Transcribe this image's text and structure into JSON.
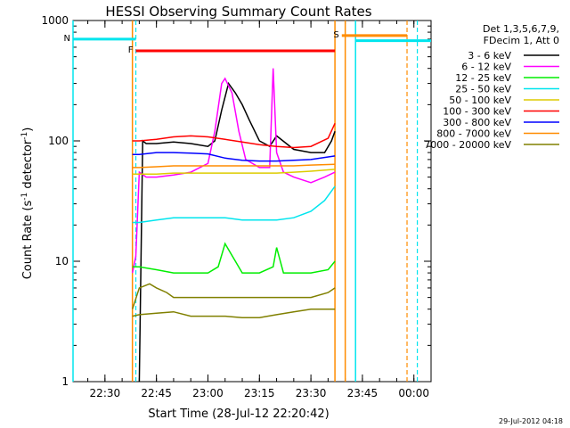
{
  "chart_data": {
    "type": "line",
    "title": "HESSI Observing Summary Count Rates",
    "xlabel": "Start Time (28-Jul-12 22:20:42)",
    "ylabel_prefix": "Count Rate (s",
    "ylabel_sup1": "-1",
    "ylabel_mid": " detector",
    "ylabel_sup2": "-1",
    "ylabel_suffix": ")",
    "ylabel": "Count Rate (s-1 detector-1)",
    "y_scale": "log",
    "ylim": [
      1,
      1000
    ],
    "xlim": [
      "22:20:42",
      "00:05:00"
    ],
    "x_ticks": [
      "22:30",
      "22:45",
      "23:00",
      "23:15",
      "23:30",
      "23:45",
      "00:00"
    ],
    "y_ticks": [
      "1",
      "10",
      "100",
      "1000"
    ],
    "grid": false,
    "legend_position": "top-right",
    "legend_header": [
      "Det 1,3,5,6,7,9,",
      "FDecim 1, Att 0"
    ],
    "series": [
      {
        "name": "3 - 6 keV",
        "color": "#000000",
        "x": [
          "22:40",
          "22:41",
          "22:42",
          "22:45",
          "22:50",
          "22:55",
          "23:00",
          "23:02",
          "23:04",
          "23:06",
          "23:08",
          "23:10",
          "23:12",
          "23:15",
          "23:18",
          "23:20",
          "23:25",
          "23:30",
          "23:34",
          "23:36",
          "23:37"
        ],
        "y": [
          1,
          100,
          95,
          95,
          98,
          95,
          90,
          100,
          180,
          300,
          250,
          200,
          150,
          100,
          90,
          110,
          85,
          80,
          80,
          100,
          120
        ]
      },
      {
        "name": "6 - 12 keV",
        "color": "#ff00ff",
        "x": [
          "22:38",
          "22:39",
          "22:40",
          "22:42",
          "22:45",
          "22:50",
          "22:55",
          "23:00",
          "23:02",
          "23:04",
          "23:05",
          "23:07",
          "23:09",
          "23:11",
          "23:15",
          "23:18",
          "23:19",
          "23:20",
          "23:22",
          "23:25",
          "23:30",
          "23:34",
          "23:37"
        ],
        "y": [
          8,
          11,
          55,
          50,
          50,
          52,
          55,
          65,
          120,
          300,
          330,
          250,
          120,
          70,
          60,
          60,
          400,
          80,
          55,
          50,
          45,
          50,
          55
        ]
      },
      {
        "name": "12 - 25 keV",
        "color": "#00ee00",
        "x": [
          "22:38",
          "22:40",
          "22:45",
          "22:50",
          "22:55",
          "23:00",
          "23:03",
          "23:05",
          "23:08",
          "23:10",
          "23:15",
          "23:19",
          "23:20",
          "23:22",
          "23:25",
          "23:30",
          "23:35",
          "23:37"
        ],
        "y": [
          9,
          9,
          8.5,
          8,
          8,
          8,
          9,
          14,
          10,
          8,
          8,
          9,
          13,
          8,
          8,
          8,
          8.5,
          10
        ]
      },
      {
        "name": "25 - 50 keV",
        "color": "#00e5ee",
        "x": [
          "22:38",
          "22:40",
          "22:45",
          "22:50",
          "22:55",
          "23:00",
          "23:05",
          "23:10",
          "23:15",
          "23:20",
          "23:25",
          "23:30",
          "23:34",
          "23:37"
        ],
        "y": [
          21,
          21,
          22,
          23,
          23,
          23,
          23,
          22,
          22,
          22,
          23,
          26,
          32,
          42
        ]
      },
      {
        "name": "50 - 100 keV",
        "color": "#ddcc00",
        "x": [
          "22:38",
          "22:40",
          "22:45",
          "22:50",
          "22:55",
          "23:00",
          "23:05",
          "23:10",
          "23:15",
          "23:20",
          "23:25",
          "23:30",
          "23:37"
        ],
        "y": [
          53,
          53,
          53,
          54,
          54,
          54,
          54,
          54,
          54,
          54,
          55,
          56,
          58
        ]
      },
      {
        "name": "100 - 300 keV",
        "color": "#ff0000",
        "x": [
          "22:38",
          "22:40",
          "22:45",
          "22:50",
          "22:55",
          "23:00",
          "23:05",
          "23:10",
          "23:15",
          "23:20",
          "23:25",
          "23:30",
          "23:35",
          "23:37"
        ],
        "y": [
          100,
          100,
          103,
          108,
          110,
          108,
          103,
          98,
          93,
          90,
          88,
          90,
          105,
          140
        ]
      },
      {
        "name": "300 - 800 keV",
        "color": "#0000ff",
        "x": [
          "22:38",
          "22:40",
          "22:45",
          "22:50",
          "22:55",
          "23:00",
          "23:05",
          "23:10",
          "23:15",
          "23:20",
          "23:25",
          "23:30",
          "23:37"
        ],
        "y": [
          77,
          77,
          80,
          80,
          79,
          78,
          72,
          69,
          68,
          68,
          69,
          70,
          75
        ]
      },
      {
        "name": "800 - 7000 keV",
        "color": "#ff8c00",
        "x": [
          "22:38",
          "22:40",
          "22:45",
          "22:50",
          "22:55",
          "23:00",
          "23:05",
          "23:10",
          "23:15",
          "23:20",
          "23:25",
          "23:30",
          "23:37"
        ],
        "y": [
          60,
          60,
          61,
          62,
          62,
          62,
          62,
          62,
          62,
          62,
          62,
          63,
          64
        ]
      },
      {
        "name": "7000 - 20000 keV",
        "color": "#808000",
        "x": [
          "22:38",
          "22:40",
          "22:43",
          "22:45",
          "22:48",
          "22:50",
          "22:55",
          "23:00",
          "23:05",
          "23:10",
          "23:15",
          "23:20",
          "23:25",
          "23:30",
          "23:35",
          "23:37"
        ],
        "y": [
          4,
          6,
          6.5,
          6,
          5.5,
          5,
          5,
          5,
          5,
          5,
          5,
          5,
          5,
          5,
          5.5,
          6
        ]
      },
      {
        "name": "7000 - 20000 keV",
        "color": "#808000",
        "x": [
          "22:38",
          "22:40",
          "22:45",
          "22:50",
          "22:55",
          "23:00",
          "23:05",
          "23:10",
          "23:15",
          "23:20",
          "23:25",
          "23:30",
          "23:35",
          "23:37"
        ],
        "y": [
          3.5,
          3.6,
          3.7,
          3.8,
          3.5,
          3.5,
          3.5,
          3.4,
          3.4,
          3.6,
          3.8,
          4,
          4,
          4
        ]
      }
    ],
    "legend_items": [
      {
        "label": "3 - 6 keV",
        "color": "#000000"
      },
      {
        "label": "6 - 12 keV",
        "color": "#ff00ff"
      },
      {
        "label": "12 - 25 keV",
        "color": "#00ee00"
      },
      {
        "label": "25 - 50 keV",
        "color": "#00e5ee"
      },
      {
        "label": "50 - 100 keV",
        "color": "#ddcc00"
      },
      {
        "label": "100 - 300 keV",
        "color": "#ff0000"
      },
      {
        "label": "300 - 800 keV",
        "color": "#0000ff"
      },
      {
        "label": "800 - 7000 keV",
        "color": "#ff8c00"
      },
      {
        "label": "7000 - 20000 keV",
        "color": "#808000"
      }
    ],
    "flag_bars": [
      {
        "label": "N",
        "color": "#00e5ee",
        "level": 700,
        "x_start": "22:20:42",
        "x_end": "22:39"
      },
      {
        "label": "F",
        "color": "#ff0000",
        "level": 560,
        "x_start": "22:39",
        "x_end": "23:37"
      },
      {
        "label": "S",
        "color": "#ff8c00",
        "level": 750,
        "x_start": "23:39",
        "x_end": "23:58"
      },
      {
        "label": "",
        "color": "#00e5ee",
        "level": 680,
        "x_start": "23:43",
        "x_end": "00:05"
      }
    ],
    "solid_vlines": [
      {
        "x": "22:20:42",
        "color": "#00e5ee"
      },
      {
        "x": "22:38",
        "color": "#ff8c00"
      },
      {
        "x": "23:37",
        "color": "#ff8c00"
      },
      {
        "x": "23:40",
        "color": "#ff8c00"
      },
      {
        "x": "23:43",
        "color": "#00e5ee"
      }
    ],
    "dashed_vlines": [
      {
        "x": "22:39",
        "color": "#00e5ee"
      },
      {
        "x": "23:58",
        "color": "#ff8c00"
      },
      {
        "x": "00:01",
        "color": "#00e5ee"
      }
    ]
  },
  "timestamp": "29-Jul-2012 04:18"
}
